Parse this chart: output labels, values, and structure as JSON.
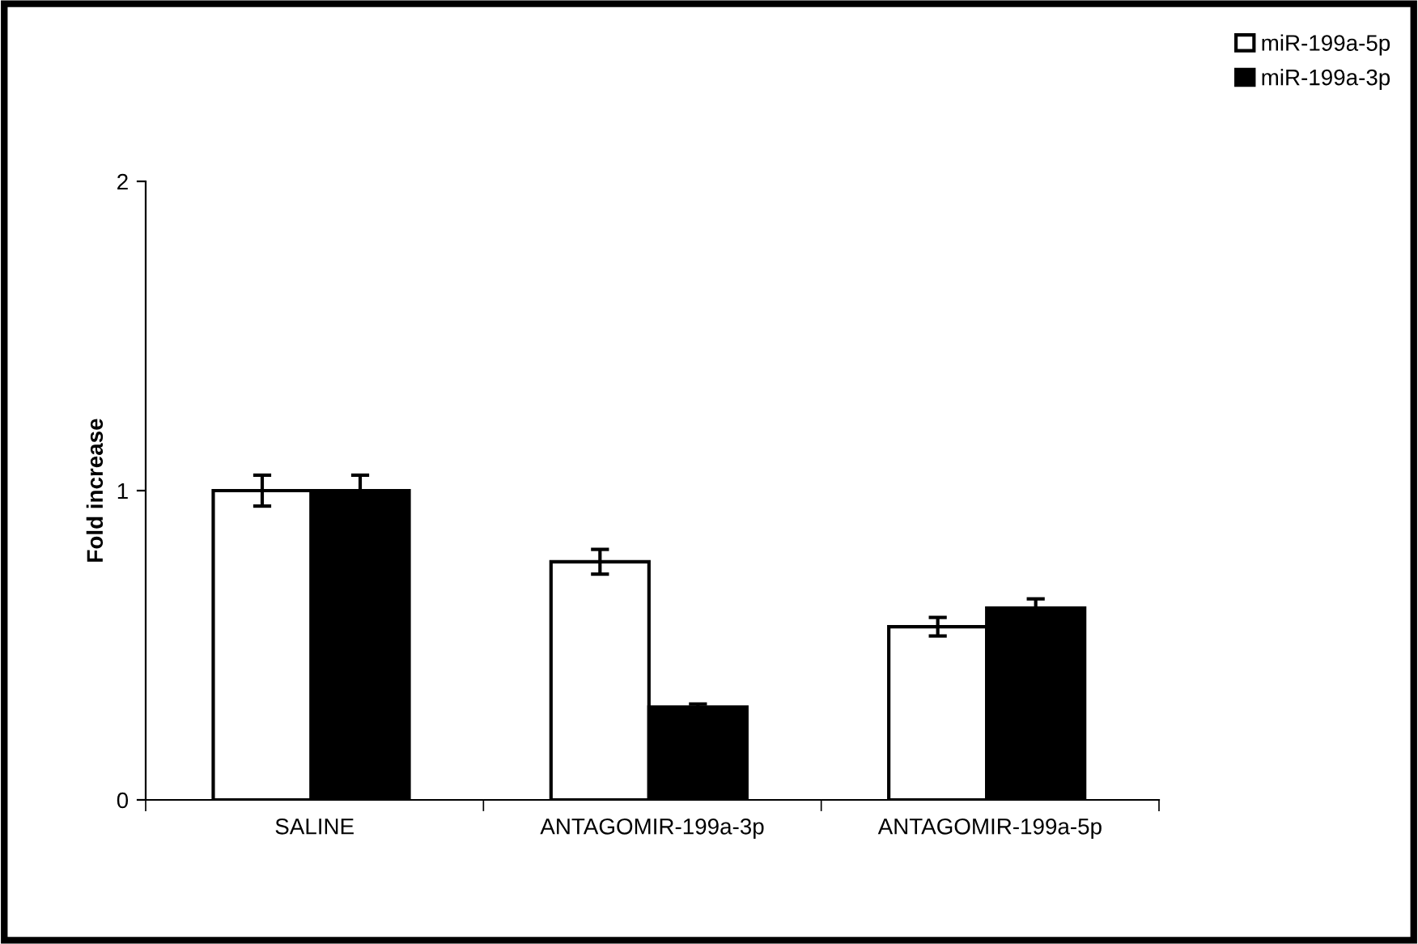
{
  "chart_data": {
    "type": "bar",
    "ylabel": "Fold increase",
    "categories": [
      "SALINE",
      "ANTAGOMIR-199a-3p",
      "ANTAGOMIR-199a-5p"
    ],
    "series": [
      {
        "name": "miR-199a-5p",
        "color": "#ffffff",
        "values": [
          1.0,
          0.77,
          0.56
        ],
        "errors": [
          0.05,
          0.04,
          0.03
        ]
      },
      {
        "name": "miR-199a-3p",
        "color": "#000000",
        "values": [
          1.0,
          0.3,
          0.62
        ],
        "errors": [
          0.05,
          0.01,
          0.03
        ]
      }
    ],
    "ylim": [
      0,
      2
    ],
    "yticks": [
      0,
      1,
      2
    ],
    "grid": false,
    "legend": "top right"
  }
}
